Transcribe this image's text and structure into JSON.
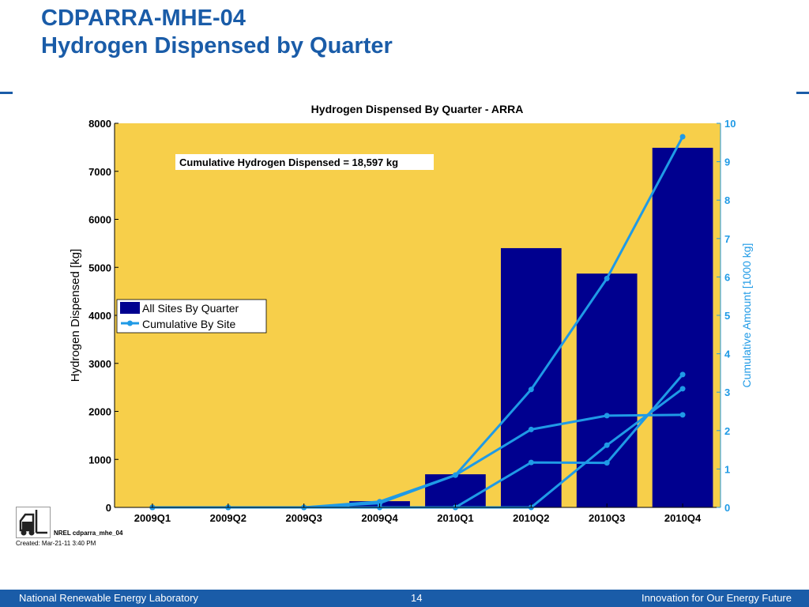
{
  "slide": {
    "title_line1": "CDPARRA-MHE-04",
    "title_line2": "Hydrogen Dispensed by Quarter",
    "brand_color": "#1a5ca8"
  },
  "chart_data": {
    "type": "bar",
    "title": "Hydrogen Dispensed By Quarter - ARRA",
    "categories": [
      "2009Q1",
      "2009Q2",
      "2009Q3",
      "2009Q4",
      "2010Q1",
      "2010Q2",
      "2010Q3",
      "2010Q4"
    ],
    "ylabel": "Hydrogen Dispensed [kg]",
    "ylim": [
      0,
      8000
    ],
    "yticks": [
      0,
      1000,
      2000,
      3000,
      4000,
      5000,
      6000,
      7000,
      8000
    ],
    "y2label": "Cumulative Amount [1000 kg]",
    "y2lim": [
      0,
      10
    ],
    "y2ticks": [
      0,
      1,
      2,
      3,
      4,
      5,
      6,
      7,
      8,
      9,
      10
    ],
    "plot_background": "#f7cf4a",
    "bar_color": "#00008f",
    "line_color": "#1f9ae6",
    "legend_position": "middle-left",
    "annotation": "Cumulative Hydrogen Dispensed = 18,597 kg",
    "series": [
      {
        "name": "All Sites By Quarter",
        "kind": "bar",
        "axis": "left",
        "values": [
          0,
          0,
          0,
          130,
          690,
          5400,
          4870,
          7490
        ]
      },
      {
        "name": "Cumulative By Site",
        "kind": "line",
        "axis": "right",
        "lines": [
          [
            0,
            0,
            0,
            0.15,
            0.84,
            3.07,
            5.96,
            9.65
          ],
          [
            0,
            0,
            0,
            0.11,
            0.84,
            2.03,
            2.39,
            2.41
          ],
          [
            0,
            0,
            0,
            0,
            0,
            1.17,
            1.16,
            3.46
          ],
          [
            0,
            0,
            0,
            0,
            0,
            0,
            1.62,
            3.09
          ]
        ]
      }
    ]
  },
  "stamp": {
    "label": "NREL cdparra_mhe_04",
    "created": "Created: Mar-21-11  3:40 PM",
    "icon": "forklift-icon"
  },
  "footer": {
    "org": "National Renewable Energy Laboratory",
    "page": "14",
    "tagline": "Innovation for Our Energy Future"
  }
}
